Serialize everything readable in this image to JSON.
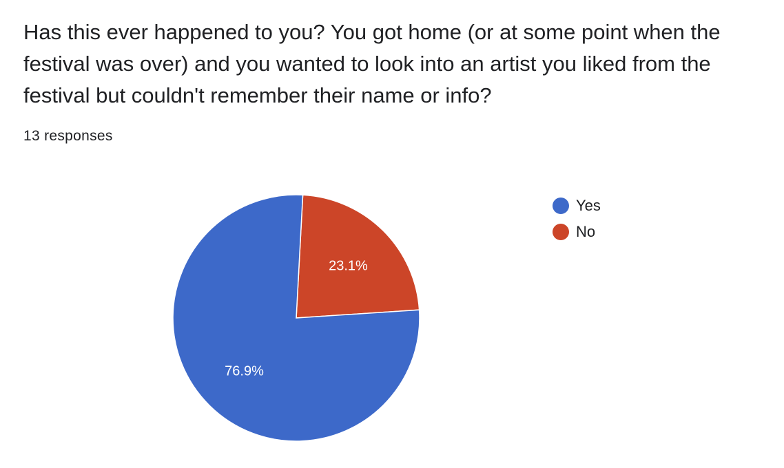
{
  "question": {
    "title": "Has this ever happened to you? You got home (or at some point when the festival was over) and you wanted to look into an artist you liked from the festival but couldn't remember their name or info?",
    "response_count": "13 responses"
  },
  "chart_data": {
    "type": "pie",
    "title": "",
    "categories": [
      "Yes",
      "No"
    ],
    "values": [
      76.9,
      23.1
    ],
    "labels": [
      "76.9%",
      "23.1%"
    ],
    "colors": [
      "#3d69c9",
      "#cc4528"
    ],
    "start": "No slice starts at 12 o'clock going clockwise",
    "legend": "right",
    "total_responses": 13
  }
}
